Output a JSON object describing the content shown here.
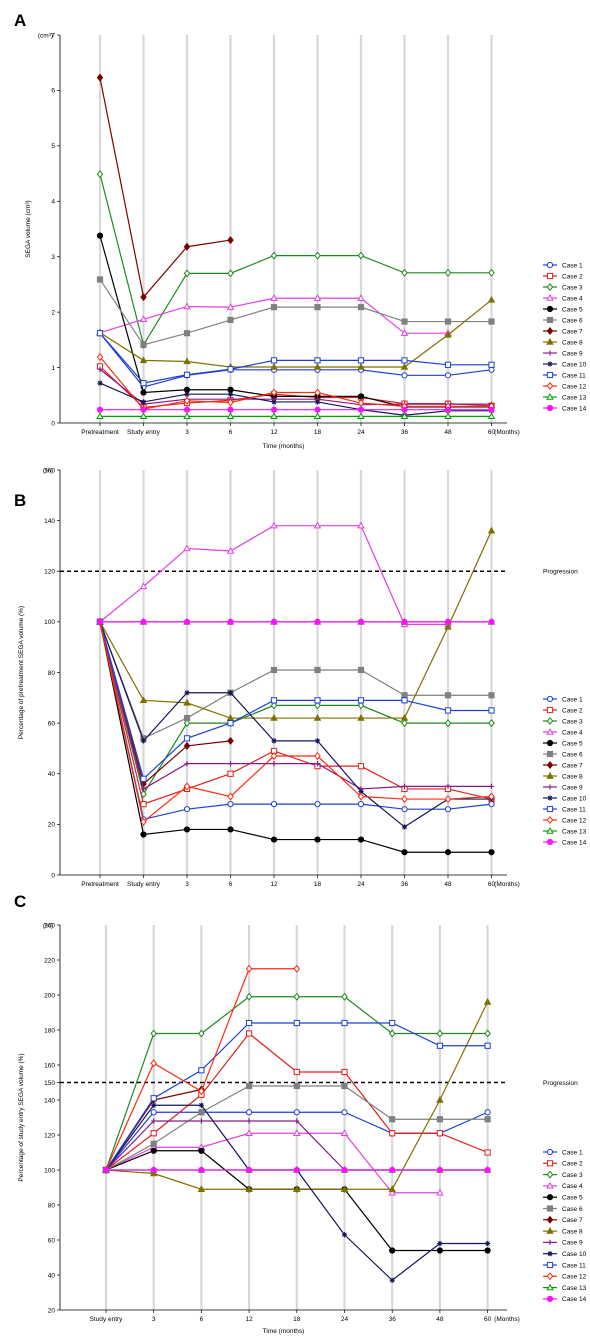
{
  "chart_data": [
    {
      "panel_label": "A",
      "type": "line",
      "categories": [
        "Pretreatment",
        "Study entry",
        "3",
        "6",
        "12",
        "18",
        "24",
        "36",
        "48",
        "60"
      ],
      "x_unit_label": "(Months)",
      "xlabel": "Time (months)",
      "ylabel": "SEGA volume (cm³)",
      "y_unit_label": "(cm³)",
      "y_ticks": [
        "0",
        "1",
        "2",
        "3",
        "4",
        "5",
        "6",
        "7"
      ],
      "ylim": [
        0,
        7
      ],
      "grid": "vertical",
      "legend_position": "right",
      "series": [
        {
          "name": "Case 1",
          "color": "#1f3fd6",
          "marker": "circle-open",
          "values": [
            1.62,
            0.65,
            0.86,
            0.96,
            0.96,
            0.96,
            0.96,
            0.86,
            0.86,
            0.96
          ]
        },
        {
          "name": "Case 2",
          "color": "#e0201c",
          "marker": "square-open",
          "values": [
            1.02,
            0.28,
            0.36,
            0.41,
            0.52,
            0.46,
            0.46,
            0.35,
            0.35,
            0.31
          ]
        },
        {
          "name": "Case 3",
          "color": "#1f8a1f",
          "marker": "diamond-open",
          "values": [
            4.49,
            1.41,
            2.7,
            2.7,
            3.02,
            3.02,
            3.02,
            2.71,
            2.71,
            2.71
          ]
        },
        {
          "name": "Case 4",
          "color": "#e040e0",
          "marker": "triangle-open",
          "values": [
            1.63,
            1.87,
            2.1,
            2.09,
            2.25,
            2.25,
            2.25,
            1.62,
            1.62,
            null
          ]
        },
        {
          "name": "Case 5",
          "color": "#000000",
          "marker": "circle-filled",
          "values": [
            3.38,
            0.55,
            0.6,
            0.6,
            0.48,
            0.48,
            0.48,
            0.29,
            0.29,
            0.29
          ]
        },
        {
          "name": "Case 6",
          "color": "#808080",
          "marker": "square-filled",
          "values": [
            2.59,
            1.41,
            1.62,
            1.86,
            2.09,
            2.09,
            2.09,
            1.83,
            1.83,
            1.83
          ]
        },
        {
          "name": "Case 7",
          "color": "#7a0000",
          "marker": "diamond-filled",
          "values": [
            6.23,
            2.27,
            3.18,
            3.3,
            null,
            null,
            null,
            null,
            null,
            null
          ]
        },
        {
          "name": "Case 8",
          "color": "#7f7000",
          "marker": "triangle-filled",
          "values": [
            1.63,
            1.13,
            1.11,
            1.01,
            1.01,
            1.01,
            1.01,
            1.01,
            1.59,
            2.22
          ]
        },
        {
          "name": "Case 9",
          "color": "#8a1a8a",
          "marker": "plus",
          "values": [
            0.97,
            0.34,
            0.43,
            0.43,
            0.43,
            0.43,
            0.33,
            0.34,
            0.34,
            0.34
          ]
        },
        {
          "name": "Case 10",
          "color": "#14145a",
          "marker": "star",
          "values": [
            0.72,
            0.38,
            0.52,
            0.52,
            0.38,
            0.38,
            0.24,
            0.14,
            0.22,
            0.22
          ]
        },
        {
          "name": "Case 11",
          "color": "#1f3fd6",
          "marker": "square-open",
          "values": [
            1.62,
            0.72,
            0.87,
            0.97,
            1.13,
            1.13,
            1.13,
            1.13,
            1.05,
            1.05
          ]
        },
        {
          "name": "Case 12",
          "color": "#ff2a10",
          "marker": "diamond-open",
          "values": [
            1.19,
            0.25,
            0.4,
            0.37,
            0.55,
            0.55,
            0.36,
            0.3,
            0.3,
            0.3
          ]
        },
        {
          "name": "Case 13",
          "color": "#00a000",
          "marker": "triangle-open",
          "values": [
            0.12,
            0.12,
            0.12,
            0.12,
            0.12,
            0.12,
            0.12,
            0.12,
            0.12,
            0.12
          ]
        },
        {
          "name": "Case 14",
          "color": "#ff10ff",
          "marker": "circle-filled",
          "values": [
            0.24,
            0.24,
            0.24,
            0.24,
            0.24,
            0.24,
            0.24,
            0.24,
            0.24,
            0.24
          ]
        }
      ]
    },
    {
      "panel_label": "B",
      "type": "line",
      "categories": [
        "Pretreatment",
        "Study entry",
        "3",
        "6",
        "12",
        "18",
        "24",
        "36",
        "48",
        "60"
      ],
      "x_unit_label": "(Months)",
      "ylabel": "Percentage of pretreatment SEGA volume (%)",
      "y_unit_label": "(%)",
      "y_ticks": [
        "0",
        "20",
        "40",
        "60",
        "80",
        "100",
        "120",
        "140",
        "160"
      ],
      "ylim": [
        0,
        160
      ],
      "reference_line": {
        "value": 120,
        "label": "Progression"
      },
      "grid": "vertical",
      "legend_position": "right",
      "series": [
        {
          "name": "Case 1",
          "color": "#1f3fd6",
          "marker": "circle-open",
          "values": [
            100,
            22,
            26,
            28,
            28,
            28,
            28,
            26,
            26,
            28
          ]
        },
        {
          "name": "Case 2",
          "color": "#e0201c",
          "marker": "square-open",
          "values": [
            100,
            28,
            34,
            40,
            49,
            43,
            43,
            34,
            34,
            30
          ]
        },
        {
          "name": "Case 3",
          "color": "#1f8a1f",
          "marker": "diamond-open",
          "values": [
            100,
            32,
            60,
            60,
            67,
            67,
            67,
            60,
            60,
            60
          ]
        },
        {
          "name": "Case 4",
          "color": "#e040e0",
          "marker": "triangle-open",
          "values": [
            100,
            114,
            129,
            128,
            138,
            138,
            138,
            99,
            99,
            null
          ]
        },
        {
          "name": "Case 5",
          "color": "#000000",
          "marker": "circle-filled",
          "values": [
            100,
            16,
            18,
            18,
            14,
            14,
            14,
            9,
            9,
            9
          ]
        },
        {
          "name": "Case 6",
          "color": "#808080",
          "marker": "square-filled",
          "values": [
            100,
            54,
            62,
            72,
            81,
            81,
            81,
            71,
            71,
            71
          ]
        },
        {
          "name": "Case 7",
          "color": "#7a0000",
          "marker": "diamond-filled",
          "values": [
            100,
            36,
            51,
            53,
            null,
            null,
            null,
            null,
            null,
            null
          ]
        },
        {
          "name": "Case 8",
          "color": "#7f7000",
          "marker": "triangle-filled",
          "values": [
            100,
            69,
            68,
            62,
            62,
            62,
            62,
            62,
            98,
            136
          ]
        },
        {
          "name": "Case 9",
          "color": "#8a1a8a",
          "marker": "plus",
          "values": [
            100,
            34,
            44,
            44,
            44,
            44,
            34,
            35,
            35,
            35
          ]
        },
        {
          "name": "Case 10",
          "color": "#14145a",
          "marker": "star",
          "values": [
            100,
            53,
            72,
            72,
            53,
            53,
            33,
            19,
            30,
            30
          ]
        },
        {
          "name": "Case 11",
          "color": "#1f3fd6",
          "marker": "square-open",
          "values": [
            100,
            38,
            54,
            60,
            69,
            69,
            69,
            69,
            65,
            65
          ]
        },
        {
          "name": "Case 12",
          "color": "#ff2a10",
          "marker": "diamond-open",
          "values": [
            100,
            21,
            35,
            31,
            47,
            47,
            31,
            30,
            30,
            31
          ]
        },
        {
          "name": "Case 13",
          "color": "#00a000",
          "marker": "triangle-open",
          "values": [
            100,
            100,
            100,
            100,
            100,
            100,
            100,
            100,
            100,
            100
          ]
        },
        {
          "name": "Case 14",
          "color": "#ff10ff",
          "marker": "circle-filled",
          "values": [
            100,
            100,
            100,
            100,
            100,
            100,
            100,
            100,
            100,
            100
          ]
        }
      ]
    },
    {
      "panel_label": "C",
      "type": "line",
      "categories": [
        "Study entry",
        "3",
        "6",
        "12",
        "18",
        "24",
        "36",
        "48",
        "60"
      ],
      "x_unit_label": "(Months)",
      "xlabel": "Time (months)",
      "ylabel": "Percentage of study entry SEGA volume (%)",
      "y_unit_label": "(%)",
      "y_ticks": [
        "20",
        "40",
        "60",
        "80",
        "100",
        "120",
        "140",
        "150",
        "160",
        "180",
        "200",
        "220",
        "240"
      ],
      "ylim": [
        20,
        240
      ],
      "reference_line": {
        "value": 150,
        "label": "Progression"
      },
      "grid": "vertical",
      "legend_position": "right",
      "series": [
        {
          "name": "Case 1",
          "color": "#1f3fd6",
          "marker": "circle-open",
          "values": [
            100,
            133,
            133,
            133,
            133,
            133,
            121,
            121,
            133
          ]
        },
        {
          "name": "Case 2",
          "color": "#e0201c",
          "marker": "square-open",
          "values": [
            100,
            121,
            143,
            178,
            156,
            156,
            121,
            121,
            110
          ]
        },
        {
          "name": "Case 3",
          "color": "#1f8a1f",
          "marker": "diamond-open",
          "values": [
            100,
            178,
            178,
            199,
            199,
            199,
            178,
            178,
            178
          ]
        },
        {
          "name": "Case 4",
          "color": "#e040e0",
          "marker": "triangle-open",
          "values": [
            100,
            113,
            113,
            121,
            121,
            121,
            87,
            87,
            null
          ]
        },
        {
          "name": "Case 5",
          "color": "#000000",
          "marker": "circle-filled",
          "values": [
            100,
            111,
            111,
            89,
            89,
            89,
            54,
            54,
            54
          ]
        },
        {
          "name": "Case 6",
          "color": "#808080",
          "marker": "square-filled",
          "values": [
            100,
            115,
            133,
            148,
            148,
            148,
            129,
            129,
            129
          ]
        },
        {
          "name": "Case 7",
          "color": "#7a0000",
          "marker": "diamond-filled",
          "values": [
            100,
            140,
            146,
            null,
            null,
            null,
            null,
            null,
            null
          ]
        },
        {
          "name": "Case 8",
          "color": "#7f7000",
          "marker": "triangle-filled",
          "values": [
            100,
            98,
            89,
            89,
            89,
            89,
            89,
            140,
            196
          ]
        },
        {
          "name": "Case 9",
          "color": "#8a1a8a",
          "marker": "plus",
          "values": [
            100,
            128,
            128,
            128,
            128,
            100,
            100,
            100,
            100
          ]
        },
        {
          "name": "Case 10",
          "color": "#14145a",
          "marker": "star",
          "values": [
            100,
            137,
            137,
            100,
            100,
            63,
            37,
            58,
            58
          ]
        },
        {
          "name": "Case 11",
          "color": "#1f3fd6",
          "marker": "square-open",
          "values": [
            100,
            141,
            157,
            184,
            184,
            184,
            184,
            171,
            171
          ]
        },
        {
          "name": "Case 12",
          "color": "#ff2a10",
          "marker": "diamond-open",
          "values": [
            100,
            161,
            145,
            215,
            215,
            null,
            null,
            null,
            null
          ]
        },
        {
          "name": "Case 13",
          "color": "#00a000",
          "marker": "triangle-open",
          "values": [
            100,
            100,
            100,
            100,
            100,
            100,
            100,
            100,
            100
          ]
        },
        {
          "name": "Case 14",
          "color": "#ff10ff",
          "marker": "circle-filled",
          "values": [
            100,
            100,
            100,
            100,
            100,
            100,
            100,
            100,
            100
          ]
        }
      ]
    }
  ]
}
